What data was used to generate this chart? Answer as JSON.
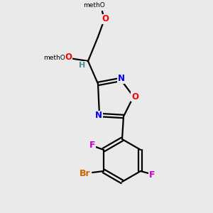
{
  "bg_color": "#eaeaea",
  "colors": {
    "bond": "#000000",
    "H": "#4a9090",
    "N": "#0000ff",
    "O": "#ff0000",
    "F": "#cc00cc",
    "Br": "#cc6600"
  },
  "figsize": [
    3.0,
    3.0
  ],
  "dpi": 100
}
